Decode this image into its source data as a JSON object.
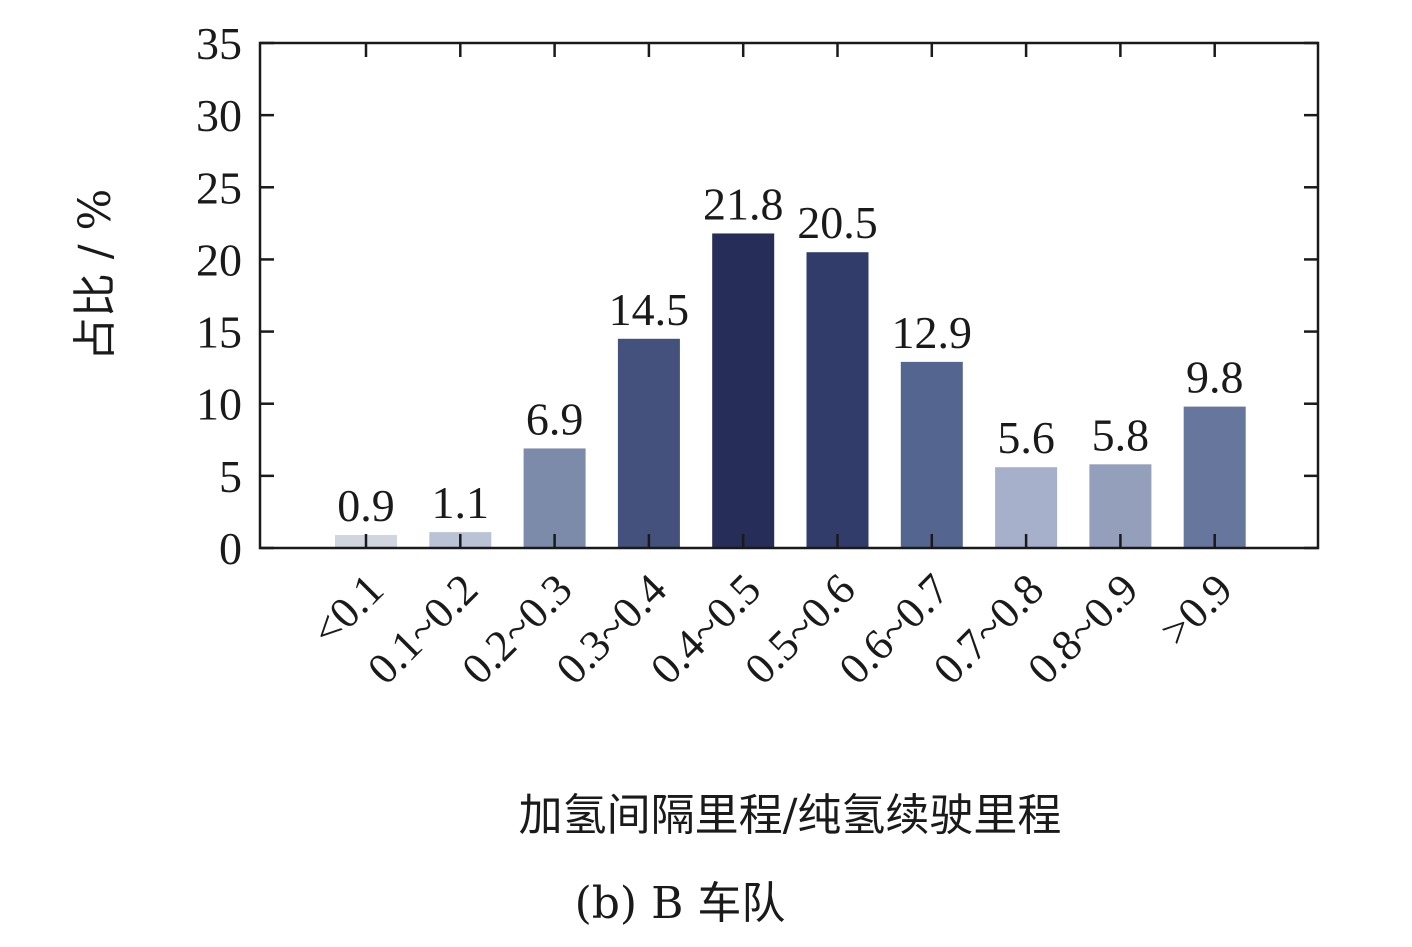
{
  "chart_data": {
    "type": "bar",
    "categories": [
      "<0.1",
      "0.1~0.2",
      "0.2~0.3",
      "0.3~0.4",
      "0.4~0.5",
      "0.5~0.6",
      "0.6~0.7",
      "0.7~0.8",
      "0.8~0.9",
      ">0.9"
    ],
    "values": [
      0.9,
      1.1,
      6.9,
      14.5,
      21.8,
      20.5,
      12.9,
      5.6,
      5.8,
      9.8
    ],
    "value_labels": [
      "0.9",
      "1.1",
      "6.9",
      "14.5",
      "21.8",
      "20.5",
      "12.9",
      "5.6",
      "5.8",
      "9.8"
    ],
    "bar_colors": [
      "#d0d5e0",
      "#bac2d6",
      "#7d8bab",
      "#43517c",
      "#262d58",
      "#323c6a",
      "#546590",
      "#a6b0cb",
      "#939fbb",
      "#66769c"
    ],
    "ylim": [
      0,
      35
    ],
    "yticks": [
      0,
      5,
      10,
      15,
      20,
      25,
      30,
      35
    ],
    "xlabel": "加氢间隔里程/纯氢续驶里程",
    "ylabel": "占比 / %",
    "caption": "(b) B 车队",
    "grid": false,
    "axis_color": "#1a1a1a"
  }
}
